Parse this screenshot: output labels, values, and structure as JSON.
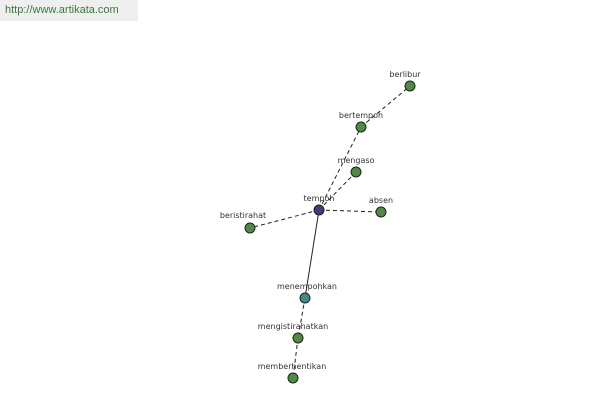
{
  "header": {
    "url": "http://www.artikata.com"
  },
  "nodes": [
    {
      "label": "tempoh"
    },
    {
      "label": "berlibur"
    },
    {
      "label": "bertempoh"
    },
    {
      "label": "mengaso"
    },
    {
      "label": "absen"
    },
    {
      "label": "beristirahat"
    },
    {
      "label": "menempohkan"
    },
    {
      "label": "mengistirahatkan"
    },
    {
      "label": "memberhentikan"
    }
  ]
}
